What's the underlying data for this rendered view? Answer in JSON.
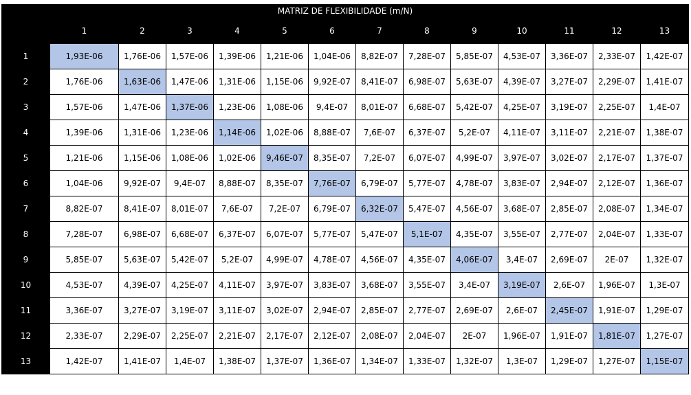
{
  "title": "MATRIZ DE FLEXIBILIDADE (m/N)",
  "colors": {
    "header_bg": "#000000",
    "header_text": "#ffffff",
    "diagonal_highlight": "#b4c6e7"
  },
  "column_headers": [
    "1",
    "2",
    "3",
    "4",
    "5",
    "6",
    "7",
    "8",
    "9",
    "10",
    "11",
    "12",
    "13"
  ],
  "row_headers": [
    "1",
    "2",
    "3",
    "4",
    "5",
    "6",
    "7",
    "8",
    "9",
    "10",
    "11",
    "12",
    "13"
  ],
  "rows": [
    [
      "1,93E-06",
      "1,76E-06",
      "1,57E-06",
      "1,39E-06",
      "1,21E-06",
      "1,04E-06",
      "8,82E-07",
      "7,28E-07",
      "5,85E-07",
      "4,53E-07",
      "3,36E-07",
      "2,33E-07",
      "1,42E-07"
    ],
    [
      "1,76E-06",
      "1,63E-06",
      "1,47E-06",
      "1,31E-06",
      "1,15E-06",
      "9,92E-07",
      "8,41E-07",
      "6,98E-07",
      "5,63E-07",
      "4,39E-07",
      "3,27E-07",
      "2,29E-07",
      "1,41E-07"
    ],
    [
      "1,57E-06",
      "1,47E-06",
      "1,37E-06",
      "1,23E-06",
      "1,08E-06",
      "9,4E-07",
      "8,01E-07",
      "6,68E-07",
      "5,42E-07",
      "4,25E-07",
      "3,19E-07",
      "2,25E-07",
      "1,4E-07"
    ],
    [
      "1,39E-06",
      "1,31E-06",
      "1,23E-06",
      "1,14E-06",
      "1,02E-06",
      "8,88E-07",
      "7,6E-07",
      "6,37E-07",
      "5,2E-07",
      "4,11E-07",
      "3,11E-07",
      "2,21E-07",
      "1,38E-07"
    ],
    [
      "1,21E-06",
      "1,15E-06",
      "1,08E-06",
      "1,02E-06",
      "9,46E-07",
      "8,35E-07",
      "7,2E-07",
      "6,07E-07",
      "4,99E-07",
      "3,97E-07",
      "3,02E-07",
      "2,17E-07",
      "1,37E-07"
    ],
    [
      "1,04E-06",
      "9,92E-07",
      "9,4E-07",
      "8,88E-07",
      "8,35E-07",
      "7,76E-07",
      "6,79E-07",
      "5,77E-07",
      "4,78E-07",
      "3,83E-07",
      "2,94E-07",
      "2,12E-07",
      "1,36E-07"
    ],
    [
      "8,82E-07",
      "8,41E-07",
      "8,01E-07",
      "7,6E-07",
      "7,2E-07",
      "6,79E-07",
      "6,32E-07",
      "5,47E-07",
      "4,56E-07",
      "3,68E-07",
      "2,85E-07",
      "2,08E-07",
      "1,34E-07"
    ],
    [
      "7,28E-07",
      "6,98E-07",
      "6,68E-07",
      "6,37E-07",
      "6,07E-07",
      "5,77E-07",
      "5,47E-07",
      "5,1E-07",
      "4,35E-07",
      "3,55E-07",
      "2,77E-07",
      "2,04E-07",
      "1,33E-07"
    ],
    [
      "5,85E-07",
      "5,63E-07",
      "5,42E-07",
      "5,2E-07",
      "4,99E-07",
      "4,78E-07",
      "4,56E-07",
      "4,35E-07",
      "4,06E-07",
      "3,4E-07",
      "2,69E-07",
      "2E-07",
      "1,32E-07"
    ],
    [
      "4,53E-07",
      "4,39E-07",
      "4,25E-07",
      "4,11E-07",
      "3,97E-07",
      "3,83E-07",
      "3,68E-07",
      "3,55E-07",
      "3,4E-07",
      "3,19E-07",
      "2,6E-07",
      "1,96E-07",
      "1,3E-07"
    ],
    [
      "3,36E-07",
      "3,27E-07",
      "3,19E-07",
      "3,11E-07",
      "3,02E-07",
      "2,94E-07",
      "2,85E-07",
      "2,77E-07",
      "2,69E-07",
      "2,6E-07",
      "2,45E-07",
      "1,91E-07",
      "1,29E-07"
    ],
    [
      "2,33E-07",
      "2,29E-07",
      "2,25E-07",
      "2,21E-07",
      "2,17E-07",
      "2,12E-07",
      "2,08E-07",
      "2,04E-07",
      "2E-07",
      "1,96E-07",
      "1,91E-07",
      "1,81E-07",
      "1,27E-07"
    ],
    [
      "1,42E-07",
      "1,41E-07",
      "1,4E-07",
      "1,38E-07",
      "1,37E-07",
      "1,36E-07",
      "1,34E-07",
      "1,33E-07",
      "1,32E-07",
      "1,3E-07",
      "1,29E-07",
      "1,27E-07",
      "1,15E-07"
    ]
  ]
}
